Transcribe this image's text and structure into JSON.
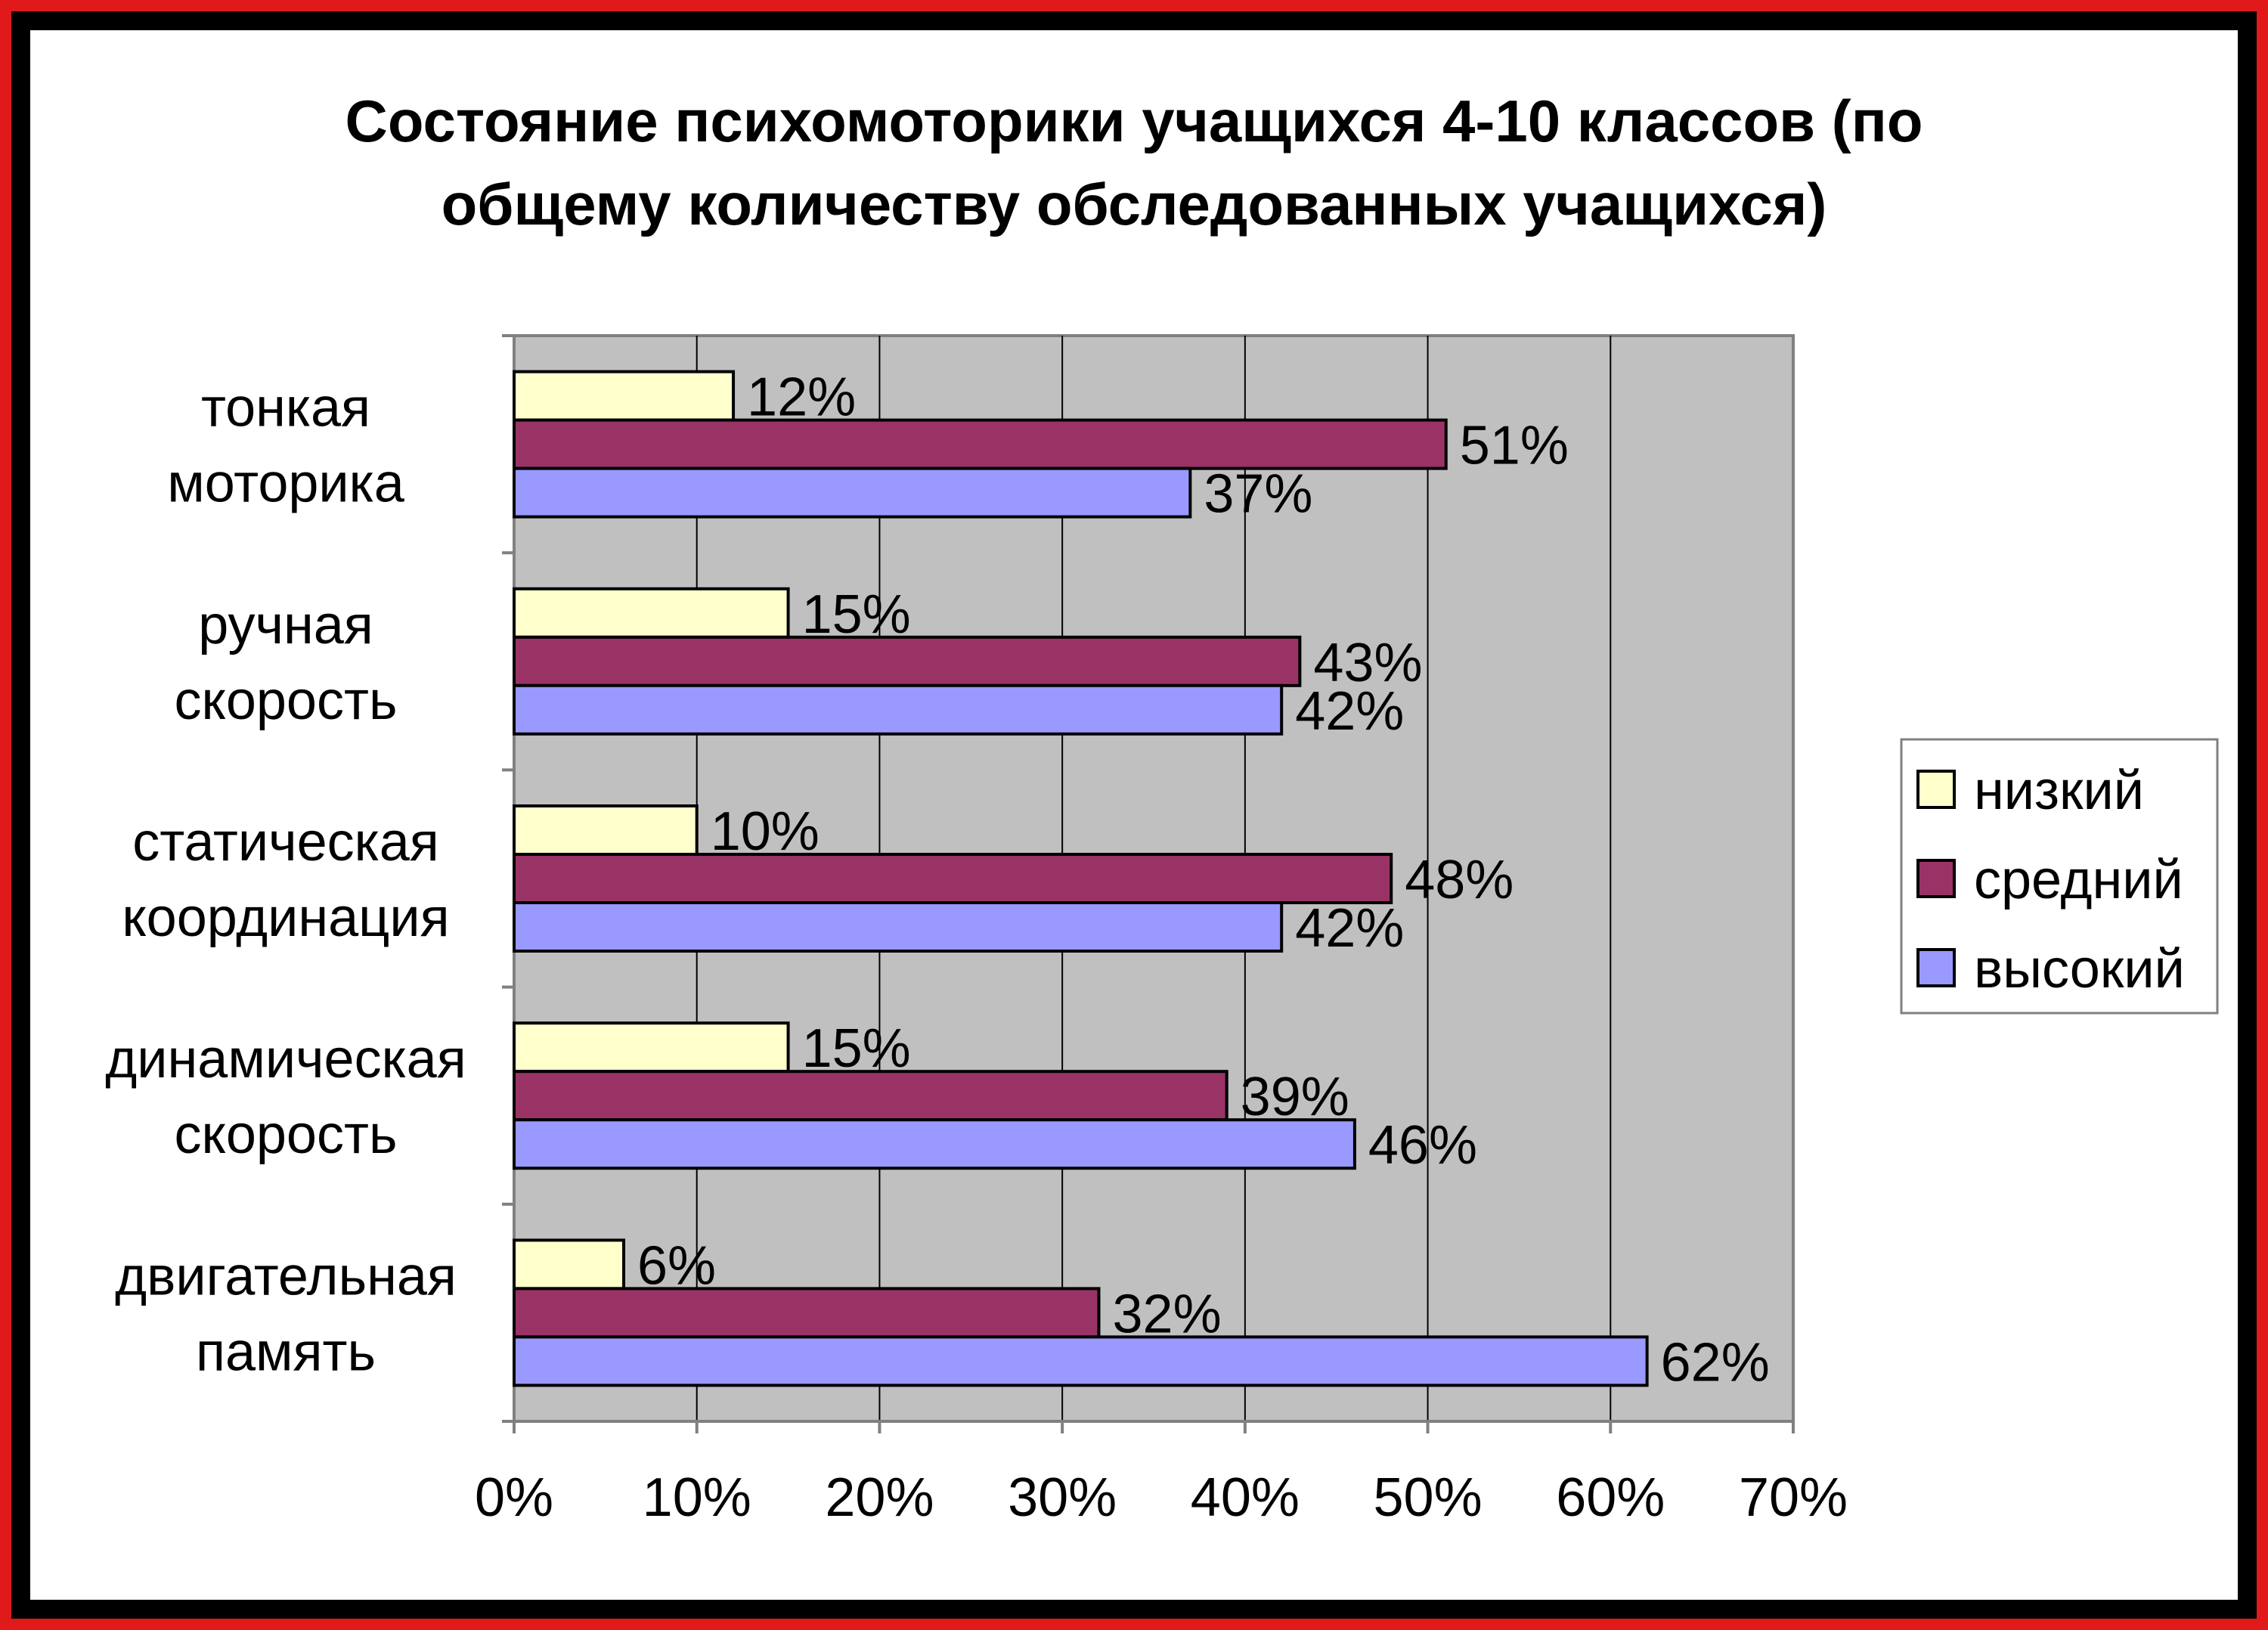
{
  "chart_data": {
    "type": "bar",
    "orientation": "horizontal",
    "title_lines": [
      "Состояние психомоторики учащихся 4-10 классов (по",
      "общему количеству обследованных учащихся)"
    ],
    "categories": [
      [
        "тонкая",
        "моторика"
      ],
      [
        "ручная",
        "скорость"
      ],
      [
        "статическая",
        "координация"
      ],
      [
        "динамическая",
        "скорость"
      ],
      [
        "двигательная",
        "память"
      ]
    ],
    "series": [
      {
        "name": "низкий",
        "color": "#ffffcc",
        "values": [
          12,
          15,
          10,
          15,
          6
        ],
        "labels": [
          "12%",
          "15%",
          "10%",
          "15%",
          "6%"
        ]
      },
      {
        "name": "средний",
        "color": "#993366",
        "values": [
          51,
          43,
          48,
          39,
          32
        ],
        "labels": [
          "51%",
          "43%",
          "48%",
          "39%",
          "32%"
        ]
      },
      {
        "name": "высокий",
        "color": "#9999ff",
        "values": [
          37,
          42,
          42,
          46,
          62
        ],
        "labels": [
          "37%",
          "42%",
          "42%",
          "46%",
          "62%"
        ]
      }
    ],
    "xlim": [
      0,
      70
    ],
    "xticks": [
      "0%",
      "10%",
      "20%",
      "30%",
      "40%",
      "50%",
      "60%",
      "70%"
    ],
    "plot_background": "#c0c0c0",
    "grid": true,
    "legend_position": "right"
  }
}
